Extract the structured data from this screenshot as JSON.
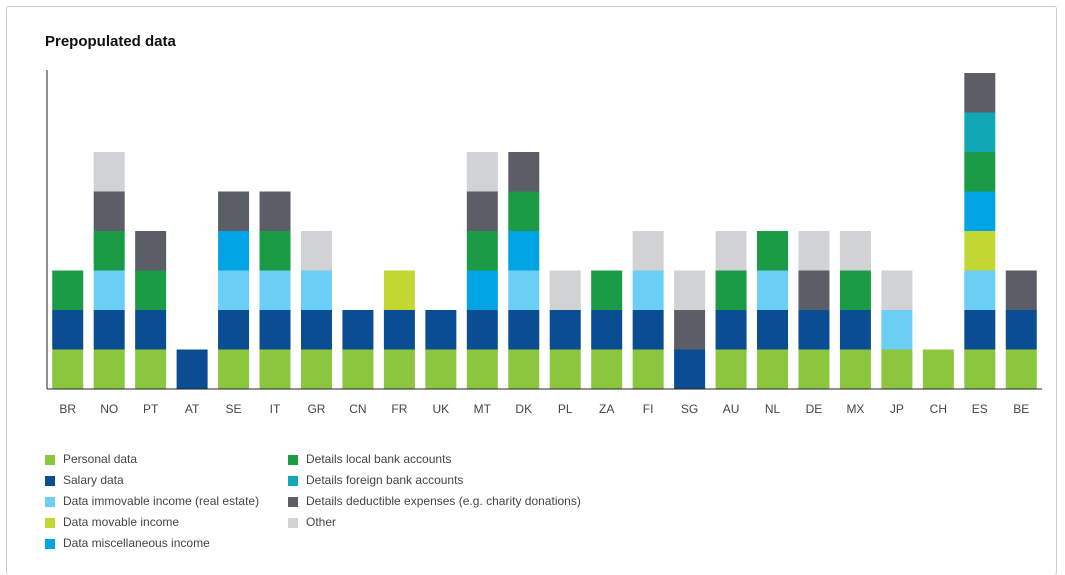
{
  "chart_data": {
    "type": "stacked-bar",
    "title": "Prepopulated data",
    "categories": [
      "BR",
      "NO",
      "PT",
      "AT",
      "SE",
      "IT",
      "GR",
      "CN",
      "FR",
      "UK",
      "MT",
      "DK",
      "PL",
      "ZA",
      "FI",
      "SG",
      "AU",
      "NL",
      "DE",
      "MX",
      "JP",
      "CH",
      "ES",
      "BE"
    ],
    "ylim": [
      0,
      8
    ],
    "series": [
      {
        "name": "Personal data",
        "color": "#8cc63e",
        "values": [
          1,
          1,
          1,
          0,
          1,
          1,
          1,
          1,
          1,
          1,
          1,
          1,
          1,
          1,
          1,
          0,
          1,
          1,
          1,
          1,
          1,
          1,
          1,
          1
        ]
      },
      {
        "name": "Salary data",
        "color": "#0b4d92",
        "values": [
          1,
          1,
          1,
          1,
          1,
          1,
          1,
          1,
          1,
          1,
          1,
          1,
          1,
          1,
          1,
          1,
          1,
          1,
          1,
          1,
          0,
          0,
          1,
          1
        ]
      },
      {
        "name": "Data immovable income (real estate)",
        "color": "#6bcff5",
        "values": [
          0,
          1,
          0,
          0,
          1,
          1,
          1,
          0,
          0,
          0,
          0,
          1,
          0,
          0,
          1,
          0,
          0,
          1,
          0,
          0,
          1,
          0,
          1,
          0
        ]
      },
      {
        "name": "Data movable income",
        "color": "#c3d732",
        "values": [
          0,
          0,
          0,
          0,
          0,
          0,
          0,
          0,
          1,
          0,
          0,
          0,
          0,
          0,
          0,
          0,
          0,
          0,
          0,
          0,
          0,
          0,
          1,
          0
        ]
      },
      {
        "name": "Data miscellaneous income",
        "color": "#00a4e4",
        "values": [
          0,
          0,
          0,
          0,
          1,
          0,
          0,
          0,
          0,
          0,
          1,
          1,
          0,
          0,
          0,
          0,
          0,
          0,
          0,
          0,
          0,
          0,
          1,
          0
        ]
      },
      {
        "name": "Details local bank accounts",
        "color": "#1b9b46",
        "values": [
          1,
          1,
          1,
          0,
          0,
          1,
          0,
          0,
          0,
          0,
          1,
          1,
          0,
          1,
          0,
          0,
          1,
          1,
          0,
          1,
          0,
          0,
          1,
          0
        ]
      },
      {
        "name": "Details foreign bank accounts",
        "color": "#10a8b5",
        "values": [
          0,
          0,
          0,
          0,
          0,
          0,
          0,
          0,
          0,
          0,
          0,
          0,
          0,
          0,
          0,
          0,
          0,
          0,
          0,
          0,
          0,
          0,
          1,
          0
        ]
      },
      {
        "name": "Details deductible expenses (e.g. charity donations)",
        "color": "#5b5e66",
        "values": [
          0,
          1,
          1,
          0,
          1,
          1,
          0,
          0,
          0,
          0,
          1,
          1,
          0,
          0,
          0,
          1,
          0,
          0,
          1,
          0,
          0,
          0,
          1,
          1
        ]
      },
      {
        "name": "Other",
        "color": "#d1d2d4",
        "values": [
          0,
          1,
          0,
          0,
          0,
          0,
          1,
          0,
          0,
          0,
          1,
          0,
          1,
          0,
          1,
          1,
          1,
          0,
          1,
          1,
          1,
          0,
          0,
          0
        ]
      }
    ]
  }
}
